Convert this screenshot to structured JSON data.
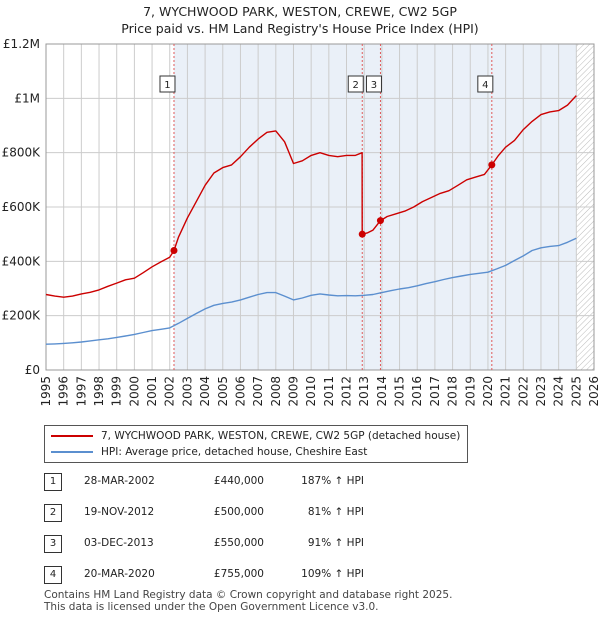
{
  "header": {
    "title_line1": "7, WYCHWOOD PARK, WESTON, CREWE, CW2 5GP",
    "title_line2": "Price paid vs. HM Land Registry's House Price Index (HPI)"
  },
  "chart_data": {
    "type": "line",
    "x_range": [
      1995,
      2026
    ],
    "y_range": [
      0,
      1200000
    ],
    "y_ticks": [
      {
        "value": 0,
        "label": "£0"
      },
      {
        "value": 200000,
        "label": "£200K"
      },
      {
        "value": 400000,
        "label": "£400K"
      },
      {
        "value": 600000,
        "label": "£600K"
      },
      {
        "value": 800000,
        "label": "£800K"
      },
      {
        "value": 1000000,
        "label": "£1M"
      },
      {
        "value": 1200000,
        "label": "£1.2M"
      }
    ],
    "x_ticks": [
      "1995",
      "1996",
      "1997",
      "1998",
      "1999",
      "2000",
      "2001",
      "2002",
      "2003",
      "2004",
      "2005",
      "2006",
      "2007",
      "2008",
      "2009",
      "2010",
      "2011",
      "2012",
      "2013",
      "2014",
      "2015",
      "2016",
      "2017",
      "2018",
      "2019",
      "2020",
      "2021",
      "2022",
      "2023",
      "2024",
      "2025",
      "2026"
    ],
    "future_from": 2025.0,
    "colors": {
      "property": "#cc0000",
      "hpi": "#5b8fcf",
      "shade": "#e8eef7",
      "grid": "#cccccc",
      "marker_line": "#e05a5a"
    },
    "series": [
      {
        "name": "property",
        "points": [
          [
            1995.0,
            278000
          ],
          [
            1995.5,
            272000
          ],
          [
            1996.0,
            268000
          ],
          [
            1996.5,
            272000
          ],
          [
            1997.0,
            280000
          ],
          [
            1997.5,
            286000
          ],
          [
            1998.0,
            295000
          ],
          [
            1998.5,
            308000
          ],
          [
            1999.0,
            320000
          ],
          [
            1999.5,
            332000
          ],
          [
            2000.0,
            338000
          ],
          [
            2000.5,
            358000
          ],
          [
            2001.0,
            380000
          ],
          [
            2001.5,
            398000
          ],
          [
            2002.0,
            415000
          ],
          [
            2002.24,
            440000
          ],
          [
            2002.5,
            490000
          ],
          [
            2003.0,
            560000
          ],
          [
            2003.5,
            620000
          ],
          [
            2004.0,
            680000
          ],
          [
            2004.5,
            725000
          ],
          [
            2005.0,
            745000
          ],
          [
            2005.5,
            755000
          ],
          [
            2006.0,
            785000
          ],
          [
            2006.5,
            820000
          ],
          [
            2007.0,
            850000
          ],
          [
            2007.5,
            875000
          ],
          [
            2008.0,
            880000
          ],
          [
            2008.5,
            840000
          ],
          [
            2009.0,
            760000
          ],
          [
            2009.5,
            770000
          ],
          [
            2010.0,
            790000
          ],
          [
            2010.5,
            800000
          ],
          [
            2011.0,
            790000
          ],
          [
            2011.5,
            785000
          ],
          [
            2012.0,
            790000
          ],
          [
            2012.5,
            790000
          ],
          [
            2012.88,
            800000
          ],
          [
            2012.89,
            500000
          ],
          [
            2013.2,
            505000
          ],
          [
            2013.5,
            515000
          ],
          [
            2013.92,
            550000
          ],
          [
            2014.3,
            565000
          ],
          [
            2014.8,
            575000
          ],
          [
            2015.3,
            585000
          ],
          [
            2015.8,
            600000
          ],
          [
            2016.3,
            620000
          ],
          [
            2016.8,
            635000
          ],
          [
            2017.3,
            650000
          ],
          [
            2017.8,
            660000
          ],
          [
            2018.3,
            680000
          ],
          [
            2018.8,
            700000
          ],
          [
            2019.3,
            710000
          ],
          [
            2019.8,
            720000
          ],
          [
            2020.22,
            755000
          ],
          [
            2020.6,
            790000
          ],
          [
            2021.0,
            820000
          ],
          [
            2021.5,
            845000
          ],
          [
            2022.0,
            885000
          ],
          [
            2022.5,
            915000
          ],
          [
            2023.0,
            940000
          ],
          [
            2023.5,
            950000
          ],
          [
            2024.0,
            955000
          ],
          [
            2024.5,
            975000
          ],
          [
            2025.0,
            1010000
          ]
        ]
      },
      {
        "name": "hpi",
        "points": [
          [
            1995.0,
            95000
          ],
          [
            1995.5,
            96000
          ],
          [
            1996.0,
            98000
          ],
          [
            1996.5,
            100000
          ],
          [
            1997.0,
            103000
          ],
          [
            1997.5,
            107000
          ],
          [
            1998.0,
            111000
          ],
          [
            1998.5,
            115000
          ],
          [
            1999.0,
            120000
          ],
          [
            1999.5,
            125000
          ],
          [
            2000.0,
            131000
          ],
          [
            2000.5,
            138000
          ],
          [
            2001.0,
            145000
          ],
          [
            2001.5,
            150000
          ],
          [
            2002.0,
            155000
          ],
          [
            2002.5,
            172000
          ],
          [
            2003.0,
            190000
          ],
          [
            2003.5,
            208000
          ],
          [
            2004.0,
            225000
          ],
          [
            2004.5,
            238000
          ],
          [
            2005.0,
            245000
          ],
          [
            2005.5,
            250000
          ],
          [
            2006.0,
            258000
          ],
          [
            2006.5,
            268000
          ],
          [
            2007.0,
            278000
          ],
          [
            2007.5,
            285000
          ],
          [
            2008.0,
            285000
          ],
          [
            2008.5,
            272000
          ],
          [
            2009.0,
            258000
          ],
          [
            2009.5,
            265000
          ],
          [
            2010.0,
            275000
          ],
          [
            2010.5,
            280000
          ],
          [
            2011.0,
            276000
          ],
          [
            2011.5,
            273000
          ],
          [
            2012.0,
            274000
          ],
          [
            2012.5,
            273000
          ],
          [
            2013.0,
            275000
          ],
          [
            2013.5,
            278000
          ],
          [
            2014.0,
            285000
          ],
          [
            2014.5,
            292000
          ],
          [
            2015.0,
            298000
          ],
          [
            2015.5,
            303000
          ],
          [
            2016.0,
            310000
          ],
          [
            2016.5,
            318000
          ],
          [
            2017.0,
            325000
          ],
          [
            2017.5,
            333000
          ],
          [
            2018.0,
            340000
          ],
          [
            2018.5,
            346000
          ],
          [
            2019.0,
            352000
          ],
          [
            2019.5,
            356000
          ],
          [
            2020.0,
            360000
          ],
          [
            2020.5,
            372000
          ],
          [
            2021.0,
            385000
          ],
          [
            2021.5,
            403000
          ],
          [
            2022.0,
            420000
          ],
          [
            2022.5,
            440000
          ],
          [
            2023.0,
            450000
          ],
          [
            2023.5,
            455000
          ],
          [
            2024.0,
            458000
          ],
          [
            2024.5,
            470000
          ],
          [
            2025.0,
            485000
          ]
        ]
      }
    ],
    "sales": [
      {
        "id": "1",
        "x": 2002.24,
        "price": 440000
      },
      {
        "id": "2",
        "x": 2012.89,
        "price": 500000
      },
      {
        "id": "3",
        "x": 2013.92,
        "price": 550000
      },
      {
        "id": "4",
        "x": 2020.22,
        "price": 755000
      }
    ]
  },
  "legend": {
    "property_label": "7, WYCHWOOD PARK, WESTON, CREWE, CW2 5GP (detached house)",
    "hpi_label": "HPI: Average price, detached house, Cheshire East"
  },
  "sales_table": [
    {
      "id": "1",
      "date": "28-MAR-2002",
      "price": "£440,000",
      "hpi": "187% ↑ HPI"
    },
    {
      "id": "2",
      "date": "19-NOV-2012",
      "price": "£500,000",
      "hpi": "81% ↑ HPI"
    },
    {
      "id": "3",
      "date": "03-DEC-2013",
      "price": "£550,000",
      "hpi": "91% ↑ HPI"
    },
    {
      "id": "4",
      "date": "20-MAR-2020",
      "price": "£755,000",
      "hpi": "109% ↑ HPI"
    }
  ],
  "footer": {
    "line1": "Contains HM Land Registry data © Crown copyright and database right 2025.",
    "line2": "This data is licensed under the Open Government Licence v3.0."
  }
}
